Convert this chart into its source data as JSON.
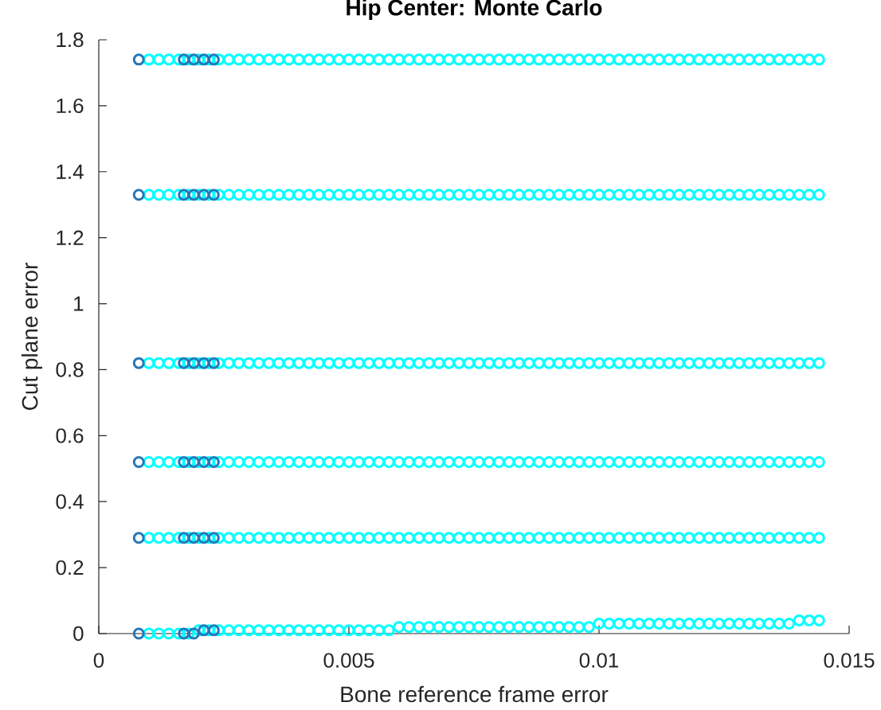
{
  "chart_data": {
    "type": "scatter",
    "title": "Hip Center: Monte Carlo",
    "xlabel": "Bone reference frame error",
    "ylabel": "Cut plane error",
    "x": [
      0.001,
      0.0012,
      0.0014,
      0.0016,
      0.0018,
      0.002,
      0.0022,
      0.0024,
      0.0026,
      0.0028,
      0.003,
      0.0032,
      0.0034,
      0.0036,
      0.0038,
      0.004,
      0.0042,
      0.0044,
      0.0046,
      0.0048,
      0.005,
      0.0052,
      0.0054,
      0.0056,
      0.0058,
      0.006,
      0.0062,
      0.0064,
      0.0066,
      0.0068,
      0.007,
      0.0072,
      0.0074,
      0.0076,
      0.0078,
      0.008,
      0.0082,
      0.0084,
      0.0086,
      0.0088,
      0.009,
      0.0092,
      0.0094,
      0.0096,
      0.0098,
      0.01,
      0.0102,
      0.0104,
      0.0106,
      0.0108,
      0.011,
      0.0112,
      0.0114,
      0.0116,
      0.0118,
      0.012,
      0.0122,
      0.0124,
      0.0126,
      0.0128,
      0.013,
      0.0132,
      0.0134,
      0.0136,
      0.0138,
      0.014,
      0.0142,
      0.0144
    ],
    "series": [
      {
        "color": "#00ffff",
        "values": [
          1.74,
          1.74,
          1.74,
          1.74,
          1.74,
          1.74,
          1.74,
          1.74,
          1.74,
          1.74,
          1.74,
          1.74,
          1.74,
          1.74,
          1.74,
          1.74,
          1.74,
          1.74,
          1.74,
          1.74,
          1.74,
          1.74,
          1.74,
          1.74,
          1.74,
          1.74,
          1.74,
          1.74,
          1.74,
          1.74,
          1.74,
          1.74,
          1.74,
          1.74,
          1.74,
          1.74,
          1.74,
          1.74,
          1.74,
          1.74,
          1.74,
          1.74,
          1.74,
          1.74,
          1.74,
          1.74,
          1.74,
          1.74,
          1.74,
          1.74,
          1.74,
          1.74,
          1.74,
          1.74,
          1.74,
          1.74,
          1.74,
          1.74,
          1.74,
          1.74,
          1.74,
          1.74,
          1.74,
          1.74,
          1.74,
          1.74,
          1.74,
          1.74
        ]
      },
      {
        "color": "#00ffff",
        "values": [
          1.33,
          1.33,
          1.33,
          1.33,
          1.33,
          1.33,
          1.33,
          1.33,
          1.33,
          1.33,
          1.33,
          1.33,
          1.33,
          1.33,
          1.33,
          1.33,
          1.33,
          1.33,
          1.33,
          1.33,
          1.33,
          1.33,
          1.33,
          1.33,
          1.33,
          1.33,
          1.33,
          1.33,
          1.33,
          1.33,
          1.33,
          1.33,
          1.33,
          1.33,
          1.33,
          1.33,
          1.33,
          1.33,
          1.33,
          1.33,
          1.33,
          1.33,
          1.33,
          1.33,
          1.33,
          1.33,
          1.33,
          1.33,
          1.33,
          1.33,
          1.33,
          1.33,
          1.33,
          1.33,
          1.33,
          1.33,
          1.33,
          1.33,
          1.33,
          1.33,
          1.33,
          1.33,
          1.33,
          1.33,
          1.33,
          1.33,
          1.33,
          1.33
        ]
      },
      {
        "color": "#00ffff",
        "values": [
          0.82,
          0.82,
          0.82,
          0.82,
          0.82,
          0.82,
          0.82,
          0.82,
          0.82,
          0.82,
          0.82,
          0.82,
          0.82,
          0.82,
          0.82,
          0.82,
          0.82,
          0.82,
          0.82,
          0.82,
          0.82,
          0.82,
          0.82,
          0.82,
          0.82,
          0.82,
          0.82,
          0.82,
          0.82,
          0.82,
          0.82,
          0.82,
          0.82,
          0.82,
          0.82,
          0.82,
          0.82,
          0.82,
          0.82,
          0.82,
          0.82,
          0.82,
          0.82,
          0.82,
          0.82,
          0.82,
          0.82,
          0.82,
          0.82,
          0.82,
          0.82,
          0.82,
          0.82,
          0.82,
          0.82,
          0.82,
          0.82,
          0.82,
          0.82,
          0.82,
          0.82,
          0.82,
          0.82,
          0.82,
          0.82,
          0.82,
          0.82,
          0.82
        ]
      },
      {
        "color": "#00ffff",
        "values": [
          0.52,
          0.52,
          0.52,
          0.52,
          0.52,
          0.52,
          0.52,
          0.52,
          0.52,
          0.52,
          0.52,
          0.52,
          0.52,
          0.52,
          0.52,
          0.52,
          0.52,
          0.52,
          0.52,
          0.52,
          0.52,
          0.52,
          0.52,
          0.52,
          0.52,
          0.52,
          0.52,
          0.52,
          0.52,
          0.52,
          0.52,
          0.52,
          0.52,
          0.52,
          0.52,
          0.52,
          0.52,
          0.52,
          0.52,
          0.52,
          0.52,
          0.52,
          0.52,
          0.52,
          0.52,
          0.52,
          0.52,
          0.52,
          0.52,
          0.52,
          0.52,
          0.52,
          0.52,
          0.52,
          0.52,
          0.52,
          0.52,
          0.52,
          0.52,
          0.52,
          0.52,
          0.52,
          0.52,
          0.52,
          0.52,
          0.52,
          0.52,
          0.52
        ]
      },
      {
        "color": "#00ffff",
        "values": [
          0.29,
          0.29,
          0.29,
          0.29,
          0.29,
          0.29,
          0.29,
          0.29,
          0.29,
          0.29,
          0.29,
          0.29,
          0.29,
          0.29,
          0.29,
          0.29,
          0.29,
          0.29,
          0.29,
          0.29,
          0.29,
          0.29,
          0.29,
          0.29,
          0.29,
          0.29,
          0.29,
          0.29,
          0.29,
          0.29,
          0.29,
          0.29,
          0.29,
          0.29,
          0.29,
          0.29,
          0.29,
          0.29,
          0.29,
          0.29,
          0.29,
          0.29,
          0.29,
          0.29,
          0.29,
          0.29,
          0.29,
          0.29,
          0.29,
          0.29,
          0.29,
          0.29,
          0.29,
          0.29,
          0.29,
          0.29,
          0.29,
          0.29,
          0.29,
          0.29,
          0.29,
          0.29,
          0.29,
          0.29,
          0.29,
          0.29,
          0.29,
          0.29
        ]
      },
      {
        "color": "#00ffff",
        "values": [
          0,
          0,
          0,
          0,
          0,
          0.01,
          0.01,
          0.01,
          0.01,
          0.01,
          0.01,
          0.01,
          0.01,
          0.01,
          0.01,
          0.01,
          0.01,
          0.01,
          0.01,
          0.01,
          0.01,
          0.01,
          0.01,
          0.01,
          0.01,
          0.02,
          0.02,
          0.02,
          0.02,
          0.02,
          0.02,
          0.02,
          0.02,
          0.02,
          0.02,
          0.02,
          0.02,
          0.02,
          0.02,
          0.02,
          0.02,
          0.02,
          0.02,
          0.02,
          0.02,
          0.03,
          0.03,
          0.03,
          0.03,
          0.03,
          0.03,
          0.03,
          0.03,
          0.03,
          0.03,
          0.03,
          0.03,
          0.03,
          0.03,
          0.03,
          0.03,
          0.03,
          0.03,
          0.03,
          0.03,
          0.04,
          0.04,
          0.04
        ]
      },
      {
        "color": "#2678b8",
        "x": [
          0.0008,
          0.0017,
          0.0019,
          0.0021,
          0.0023,
          0.0008,
          0.0017,
          0.0019,
          0.0021,
          0.0023,
          0.0008,
          0.0017,
          0.0019,
          0.0021,
          0.0023,
          0.0008,
          0.0017,
          0.0019,
          0.0021,
          0.0023,
          0.0008,
          0.0017,
          0.0019,
          0.0021,
          0.0023,
          0.0008,
          0.0017,
          0.0019,
          0.0021,
          0.0023
        ],
        "values": [
          1.74,
          1.74,
          1.74,
          1.74,
          1.74,
          1.33,
          1.33,
          1.33,
          1.33,
          1.33,
          0.82,
          0.82,
          0.82,
          0.82,
          0.82,
          0.52,
          0.52,
          0.52,
          0.52,
          0.52,
          0.29,
          0.29,
          0.29,
          0.29,
          0.29,
          0,
          0,
          0,
          0.01,
          0.01
        ]
      }
    ],
    "xlim": [
      0,
      0.015
    ],
    "ylim": [
      0,
      1.8
    ],
    "xticks": [
      0,
      0.005,
      0.01,
      0.015
    ],
    "yticks": [
      0,
      0.2,
      0.4,
      0.6,
      0.8,
      1,
      1.2,
      1.4,
      1.6,
      1.8
    ],
    "marker": "circle"
  }
}
